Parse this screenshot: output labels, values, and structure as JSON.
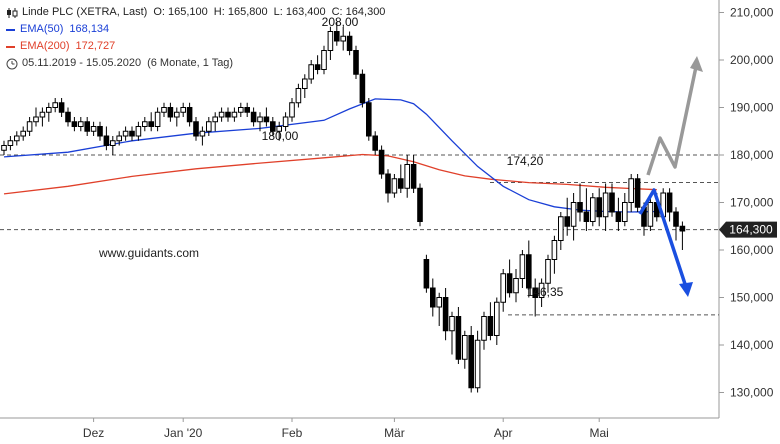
{
  "header": {
    "instrument": "Linde PLC (XETRA, Last)",
    "open": "O: 165,100",
    "high": "H: 165,800",
    "low": "L: 163,400",
    "close": "C: 164,300",
    "ema50_label": "EMA(50)",
    "ema50_value": "168,134",
    "ema200_label": "EMA(200)",
    "ema200_value": "172,727",
    "period": "05.11.2019 - 15.05.2020",
    "interval": "(6 Monate, 1 Tag)"
  },
  "watermark": "www.guidants.com",
  "colors": {
    "ema50": "#1a3fd6",
    "ema200": "#e0402a",
    "up_arrow": "#999999",
    "down_arrow": "#1a4fe0",
    "candle": "#000000"
  },
  "chart_data": {
    "type": "candlestick",
    "y_axis": {
      "min": 125,
      "max": 215,
      "ticks": [
        "130,000",
        "140,000",
        "150,000",
        "160,000",
        "170,000",
        "180,000",
        "190,000",
        "200,000",
        "210,000"
      ]
    },
    "x_axis": {
      "labels": [
        "Dez",
        "Jan '20",
        "Feb",
        "Mär",
        "Apr",
        "Mai"
      ]
    },
    "price_tag": "164,300",
    "annotations": [
      {
        "text": "208,00"
      },
      {
        "text": "180,00"
      },
      {
        "text": "174,20"
      },
      {
        "text": "146,35"
      }
    ],
    "levels": [
      180.0,
      174.2,
      164.3,
      146.35
    ],
    "candles": [
      [
        181,
        183,
        180,
        182
      ],
      [
        182,
        184,
        181,
        183
      ],
      [
        183,
        185,
        182,
        184
      ],
      [
        184,
        186,
        183,
        185
      ],
      [
        185,
        188,
        184,
        187
      ],
      [
        187,
        190,
        186,
        188
      ],
      [
        188,
        190,
        186,
        189
      ],
      [
        189,
        191,
        187,
        190
      ],
      [
        190,
        192,
        189,
        191
      ],
      [
        191,
        192,
        188,
        189
      ],
      [
        189,
        190,
        186,
        187
      ],
      [
        187,
        188,
        185,
        186
      ],
      [
        186,
        188,
        185,
        187
      ],
      [
        187,
        188,
        184,
        185
      ],
      [
        185,
        187,
        184,
        186
      ],
      [
        186,
        187,
        183,
        184
      ],
      [
        184,
        186,
        181,
        182
      ],
      [
        182,
        184,
        180,
        183
      ],
      [
        183,
        185,
        182,
        184
      ],
      [
        184,
        186,
        183,
        185
      ],
      [
        185,
        186,
        183,
        184
      ],
      [
        184,
        187,
        183,
        186
      ],
      [
        186,
        188,
        185,
        187
      ],
      [
        187,
        189,
        185,
        186
      ],
      [
        186,
        190,
        185,
        189
      ],
      [
        189,
        191,
        188,
        190
      ],
      [
        190,
        191,
        187,
        188
      ],
      [
        188,
        190,
        186,
        189
      ],
      [
        189,
        191,
        188,
        190
      ],
      [
        190,
        191,
        186,
        187
      ],
      [
        187,
        188,
        183,
        184
      ],
      [
        184,
        186,
        182,
        185
      ],
      [
        185,
        188,
        184,
        187
      ],
      [
        187,
        189,
        185,
        188
      ],
      [
        188,
        190,
        187,
        189
      ],
      [
        189,
        190,
        187,
        188
      ],
      [
        188,
        190,
        187,
        189
      ],
      [
        189,
        191,
        188,
        190
      ],
      [
        190,
        191,
        188,
        189
      ],
      [
        189,
        190,
        186,
        187
      ],
      [
        187,
        189,
        185,
        188
      ],
      [
        188,
        190,
        186,
        187
      ],
      [
        187,
        188,
        184,
        185
      ],
      [
        185,
        187,
        183,
        186
      ],
      [
        186,
        189,
        185,
        188
      ],
      [
        188,
        192,
        187,
        191
      ],
      [
        191,
        195,
        190,
        194
      ],
      [
        194,
        197,
        192,
        196
      ],
      [
        196,
        200,
        195,
        199
      ],
      [
        199,
        201,
        197,
        198
      ],
      [
        198,
        203,
        197,
        202
      ],
      [
        202,
        207,
        200,
        206
      ],
      [
        206,
        208,
        203,
        204
      ],
      [
        204,
        207,
        202,
        205
      ],
      [
        205,
        206,
        201,
        202
      ],
      [
        202,
        203,
        196,
        197
      ],
      [
        197,
        198,
        190,
        191
      ],
      [
        191,
        192,
        183,
        184
      ],
      [
        184,
        185,
        180,
        181
      ],
      [
        181,
        182,
        175,
        176
      ],
      [
        176,
        177,
        170,
        172
      ],
      [
        172,
        176,
        171,
        175
      ],
      [
        175,
        178,
        172,
        173
      ],
      [
        173,
        180,
        171,
        178
      ],
      [
        178,
        180,
        172,
        173
      ],
      [
        173,
        174,
        165,
        166
      ],
      [
        158,
        159,
        151,
        152
      ],
      [
        152,
        154,
        146,
        148
      ],
      [
        148,
        151,
        144,
        150
      ],
      [
        150,
        152,
        141,
        143
      ],
      [
        143,
        147,
        138,
        146
      ],
      [
        146,
        148,
        136,
        137
      ],
      [
        137,
        143,
        135,
        142
      ],
      [
        142,
        144,
        130,
        131
      ],
      [
        131,
        143,
        130,
        141
      ],
      [
        141,
        147,
        139,
        146
      ],
      [
        146,
        149,
        141,
        142
      ],
      [
        142,
        150,
        140,
        149
      ],
      [
        149,
        156,
        147,
        155
      ],
      [
        155,
        158,
        150,
        151
      ],
      [
        151,
        156,
        149,
        154
      ],
      [
        154,
        160,
        152,
        159
      ],
      [
        159,
        162,
        150,
        152
      ],
      [
        152,
        154,
        146,
        150
      ],
      [
        150,
        154,
        148,
        153
      ],
      [
        153,
        159,
        151,
        158
      ],
      [
        158,
        163,
        155,
        162
      ],
      [
        162,
        168,
        160,
        167
      ],
      [
        167,
        171,
        163,
        165
      ],
      [
        165,
        172,
        162,
        170
      ],
      [
        170,
        174,
        166,
        168
      ],
      [
        168,
        173,
        164,
        166
      ],
      [
        166,
        172,
        165,
        171
      ],
      [
        171,
        173,
        165,
        167
      ],
      [
        167,
        174,
        164,
        172
      ],
      [
        172,
        174,
        167,
        168
      ],
      [
        168,
        171,
        164,
        166
      ],
      [
        166,
        172,
        165,
        170
      ],
      [
        170,
        176,
        168,
        175
      ],
      [
        175,
        176,
        168,
        169
      ],
      [
        169,
        170,
        163,
        165
      ],
      [
        165,
        171,
        164,
        170
      ],
      [
        170,
        172,
        166,
        167
      ],
      [
        167,
        173,
        166,
        172
      ],
      [
        172,
        173,
        166,
        168
      ],
      [
        168,
        169,
        162,
        165
      ],
      [
        165,
        166,
        160,
        164
      ]
    ],
    "ema50": [
      [
        0,
        179.6
      ],
      [
        10,
        180.6
      ],
      [
        20,
        183.0
      ],
      [
        30,
        184.6
      ],
      [
        40,
        185.6
      ],
      [
        50,
        187.3
      ],
      [
        54,
        189.7
      ],
      [
        58,
        191.8
      ],
      [
        62,
        191.6
      ],
      [
        64,
        190.8
      ],
      [
        66,
        188.6
      ],
      [
        70,
        183.0
      ],
      [
        74,
        177.6
      ],
      [
        78,
        173.4
      ],
      [
        82,
        170.6
      ],
      [
        86,
        169.1
      ],
      [
        90,
        168.4
      ],
      [
        94,
        168.1
      ],
      [
        98,
        168.0
      ],
      [
        102,
        168.1
      ]
    ],
    "ema200": [
      [
        0,
        171.8
      ],
      [
        10,
        173.4
      ],
      [
        20,
        175.5
      ],
      [
        30,
        177.1
      ],
      [
        40,
        178.3
      ],
      [
        50,
        179.4
      ],
      [
        56,
        180.1
      ],
      [
        60,
        179.8
      ],
      [
        64,
        178.6
      ],
      [
        68,
        176.9
      ],
      [
        72,
        175.6
      ],
      [
        76,
        174.9
      ],
      [
        82,
        174.2
      ],
      [
        88,
        173.8
      ],
      [
        94,
        173.2
      ],
      [
        102,
        172.7
      ]
    ]
  }
}
